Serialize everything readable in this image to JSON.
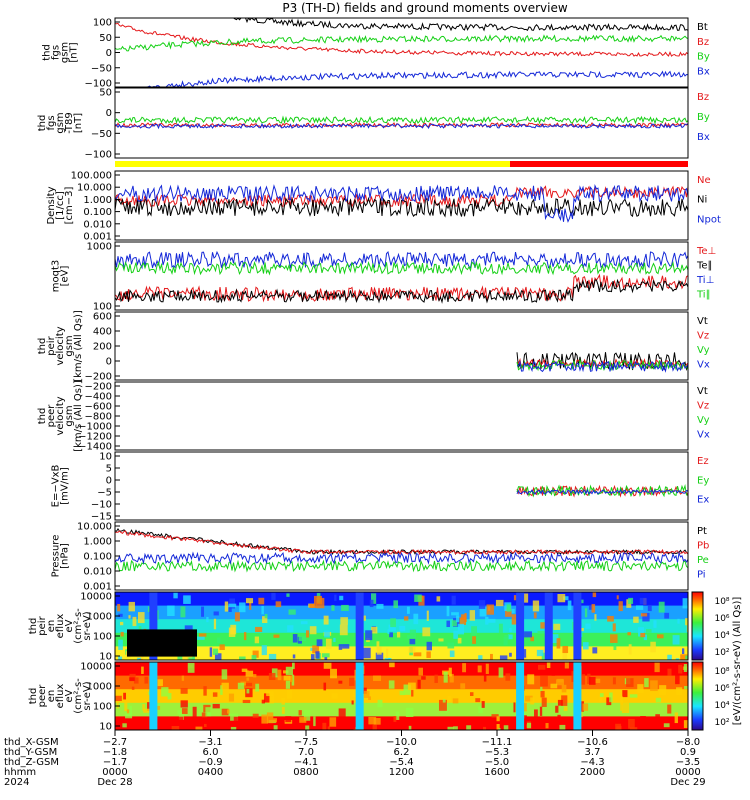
{
  "title": "P3 (TH-D) fields and ground moments overview",
  "colors": {
    "black": "#000000",
    "red": "#e41a1c",
    "green": "#16d016",
    "blue": "#1428d8",
    "yellow": "#ffff00",
    "bar_red": "#ff0000"
  },
  "status_bar": {
    "segments": [
      {
        "color": "yellow",
        "from": "0000",
        "to": "1530"
      },
      {
        "color": "red",
        "from": "1530",
        "to": "0000"
      }
    ]
  },
  "chart_data": [
    {
      "type": "line",
      "id": "fgs_full",
      "ylabel": [
        "thd",
        "fgs",
        "gsm",
        "[nT]"
      ],
      "ylim": [
        -100,
        100
      ],
      "ticks": [
        "100",
        "50",
        "0",
        "−50",
        "−100"
      ],
      "series": [
        {
          "name": "Bt",
          "color": "black"
        },
        {
          "name": "Bz",
          "color": "red"
        },
        {
          "name": "By",
          "color": "green"
        },
        {
          "name": "Bx",
          "color": "blue"
        }
      ]
    },
    {
      "type": "line",
      "id": "fgs_dipole",
      "ylabel": [
        "thd",
        "fgs",
        "gsm",
        "-T89",
        "[nT]"
      ],
      "ylim": [
        -120,
        50
      ],
      "ticks": [
        "50",
        "0",
        "−50",
        "−100"
      ],
      "series": [
        {
          "name": "Bz",
          "color": "red"
        },
        {
          "name": "By",
          "color": "green"
        },
        {
          "name": "Bx",
          "color": "blue"
        }
      ]
    },
    {
      "type": "line",
      "id": "density",
      "log": true,
      "ylabel": [
        "Density",
        "[1/cc]",
        "[cm−3]"
      ],
      "ticks": [
        "100.000",
        "10.000",
        "1.000",
        "0.100",
        "0.010",
        "0.001"
      ],
      "series": [
        {
          "name": "Ne",
          "color": "red"
        },
        {
          "name": "Ni",
          "color": "black"
        },
        {
          "name": "Npot",
          "color": "blue"
        }
      ]
    },
    {
      "type": "line",
      "id": "temperature",
      "log": true,
      "ylabel": [
        "moqt3",
        "[eV]"
      ],
      "ticks": [
        "1000",
        "100"
      ],
      "series": [
        {
          "name": "Te⊥",
          "color": "red"
        },
        {
          "name": "Te∥",
          "color": "black"
        },
        {
          "name": "Ti⊥",
          "color": "blue"
        },
        {
          "name": "Ti∥",
          "color": "green"
        }
      ]
    },
    {
      "type": "line",
      "id": "peir_velocity",
      "ylabel": [
        "thd",
        "peir",
        "velocity",
        "gsm",
        "[km/s (All Qs)]"
      ],
      "ylim": [
        -200,
        700
      ],
      "ticks": [
        "600",
        "400",
        "200",
        "0",
        "−200"
      ],
      "series": [
        {
          "name": "Vt",
          "color": "black"
        },
        {
          "name": "Vz",
          "color": "red"
        },
        {
          "name": "Vy",
          "color": "green"
        },
        {
          "name": "Vx",
          "color": "blue"
        }
      ]
    },
    {
      "type": "line",
      "id": "peer_velocity",
      "ylabel": [
        "thd",
        "peer",
        "velocity",
        "gsm",
        "[km/s (All Qs)]"
      ],
      "ylim": [
        -1400,
        -200
      ],
      "ticks": [
        "−200",
        "−400",
        "−600",
        "−800",
        "−1000",
        "−1200",
        "−1400"
      ],
      "series": [
        {
          "name": "Vt",
          "color": "black"
        },
        {
          "name": "Vz",
          "color": "red"
        },
        {
          "name": "Vy",
          "color": "green"
        },
        {
          "name": "Vx",
          "color": "blue"
        }
      ]
    },
    {
      "type": "line",
      "id": "efield",
      "ylabel": [
        "E=−VxB",
        "[mV/m]"
      ],
      "ylim": [
        -15,
        15
      ],
      "ticks": [
        "10",
        "5",
        "0",
        "−5",
        "−10",
        "−15"
      ],
      "series": [
        {
          "name": "Ez",
          "color": "red"
        },
        {
          "name": "Ey",
          "color": "green"
        },
        {
          "name": "Ex",
          "color": "blue"
        }
      ]
    },
    {
      "type": "line",
      "id": "pressure",
      "log": true,
      "ylabel": [
        "Pressure",
        "[nPa]"
      ],
      "ticks": [
        "10.000",
        "1.000",
        "0.100",
        "0.010",
        "0.001"
      ],
      "series": [
        {
          "name": "Pt",
          "color": "black"
        },
        {
          "name": "Pb",
          "color": "red"
        },
        {
          "name": "Pe",
          "color": "green"
        },
        {
          "name": "Pi",
          "color": "blue"
        }
      ]
    },
    {
      "type": "heatmap",
      "id": "ion_spectrogram",
      "log": true,
      "ylabel": [
        "thd",
        "peir",
        "en",
        "eflux",
        "eV",
        "(cm²-s-",
        "sr-eV)"
      ],
      "ticks": [
        "10000",
        "1000",
        "100",
        "10"
      ],
      "colorbar": {
        "ticks": [
          "10⁸",
          "10⁶",
          "10⁴",
          "10²"
        ],
        "label": "[eV/(cm²-s-sr-eV) (All Qs)]"
      }
    },
    {
      "type": "heatmap",
      "id": "electron_spectrogram",
      "log": true,
      "ylabel": [
        "thd",
        "peer",
        "en",
        "eflux",
        "eV",
        "(cm²-s-",
        "sr-eV)"
      ],
      "ticks": [
        "10000",
        "1000",
        "100",
        "10"
      ],
      "colorbar": {
        "ticks": [
          "10⁸",
          "10⁶",
          "10⁴",
          "10²"
        ],
        "label": "[eV/(cm²-s-sr-eV) (All Qs)]"
      }
    }
  ],
  "x_axis": {
    "rows": [
      {
        "label": "thd_X-GSM",
        "values": [
          "−2.7",
          "−3.1",
          "−7.5",
          "−10.0",
          "−11.1",
          "−10.6",
          "−8.0"
        ]
      },
      {
        "label": "thd_Y-GSM",
        "values": [
          "−1.8",
          "6.0",
          "7.0",
          "6.2",
          "−5.3",
          "3.7",
          "0.9"
        ]
      },
      {
        "label": "thd_Z-GSM",
        "values": [
          "−1.7",
          "−0.9",
          "−4.1",
          "−5.4",
          "−5.0",
          "−4.3",
          "−3.5"
        ]
      },
      {
        "label": "hhmm",
        "values": [
          "0000",
          "0400",
          "0800",
          "1200",
          "1600",
          "2000",
          "0000"
        ]
      },
      {
        "label": "2024",
        "values": [
          "Dec 28",
          "",
          "",
          "",
          "",
          "",
          "Dec 29"
        ]
      }
    ]
  }
}
